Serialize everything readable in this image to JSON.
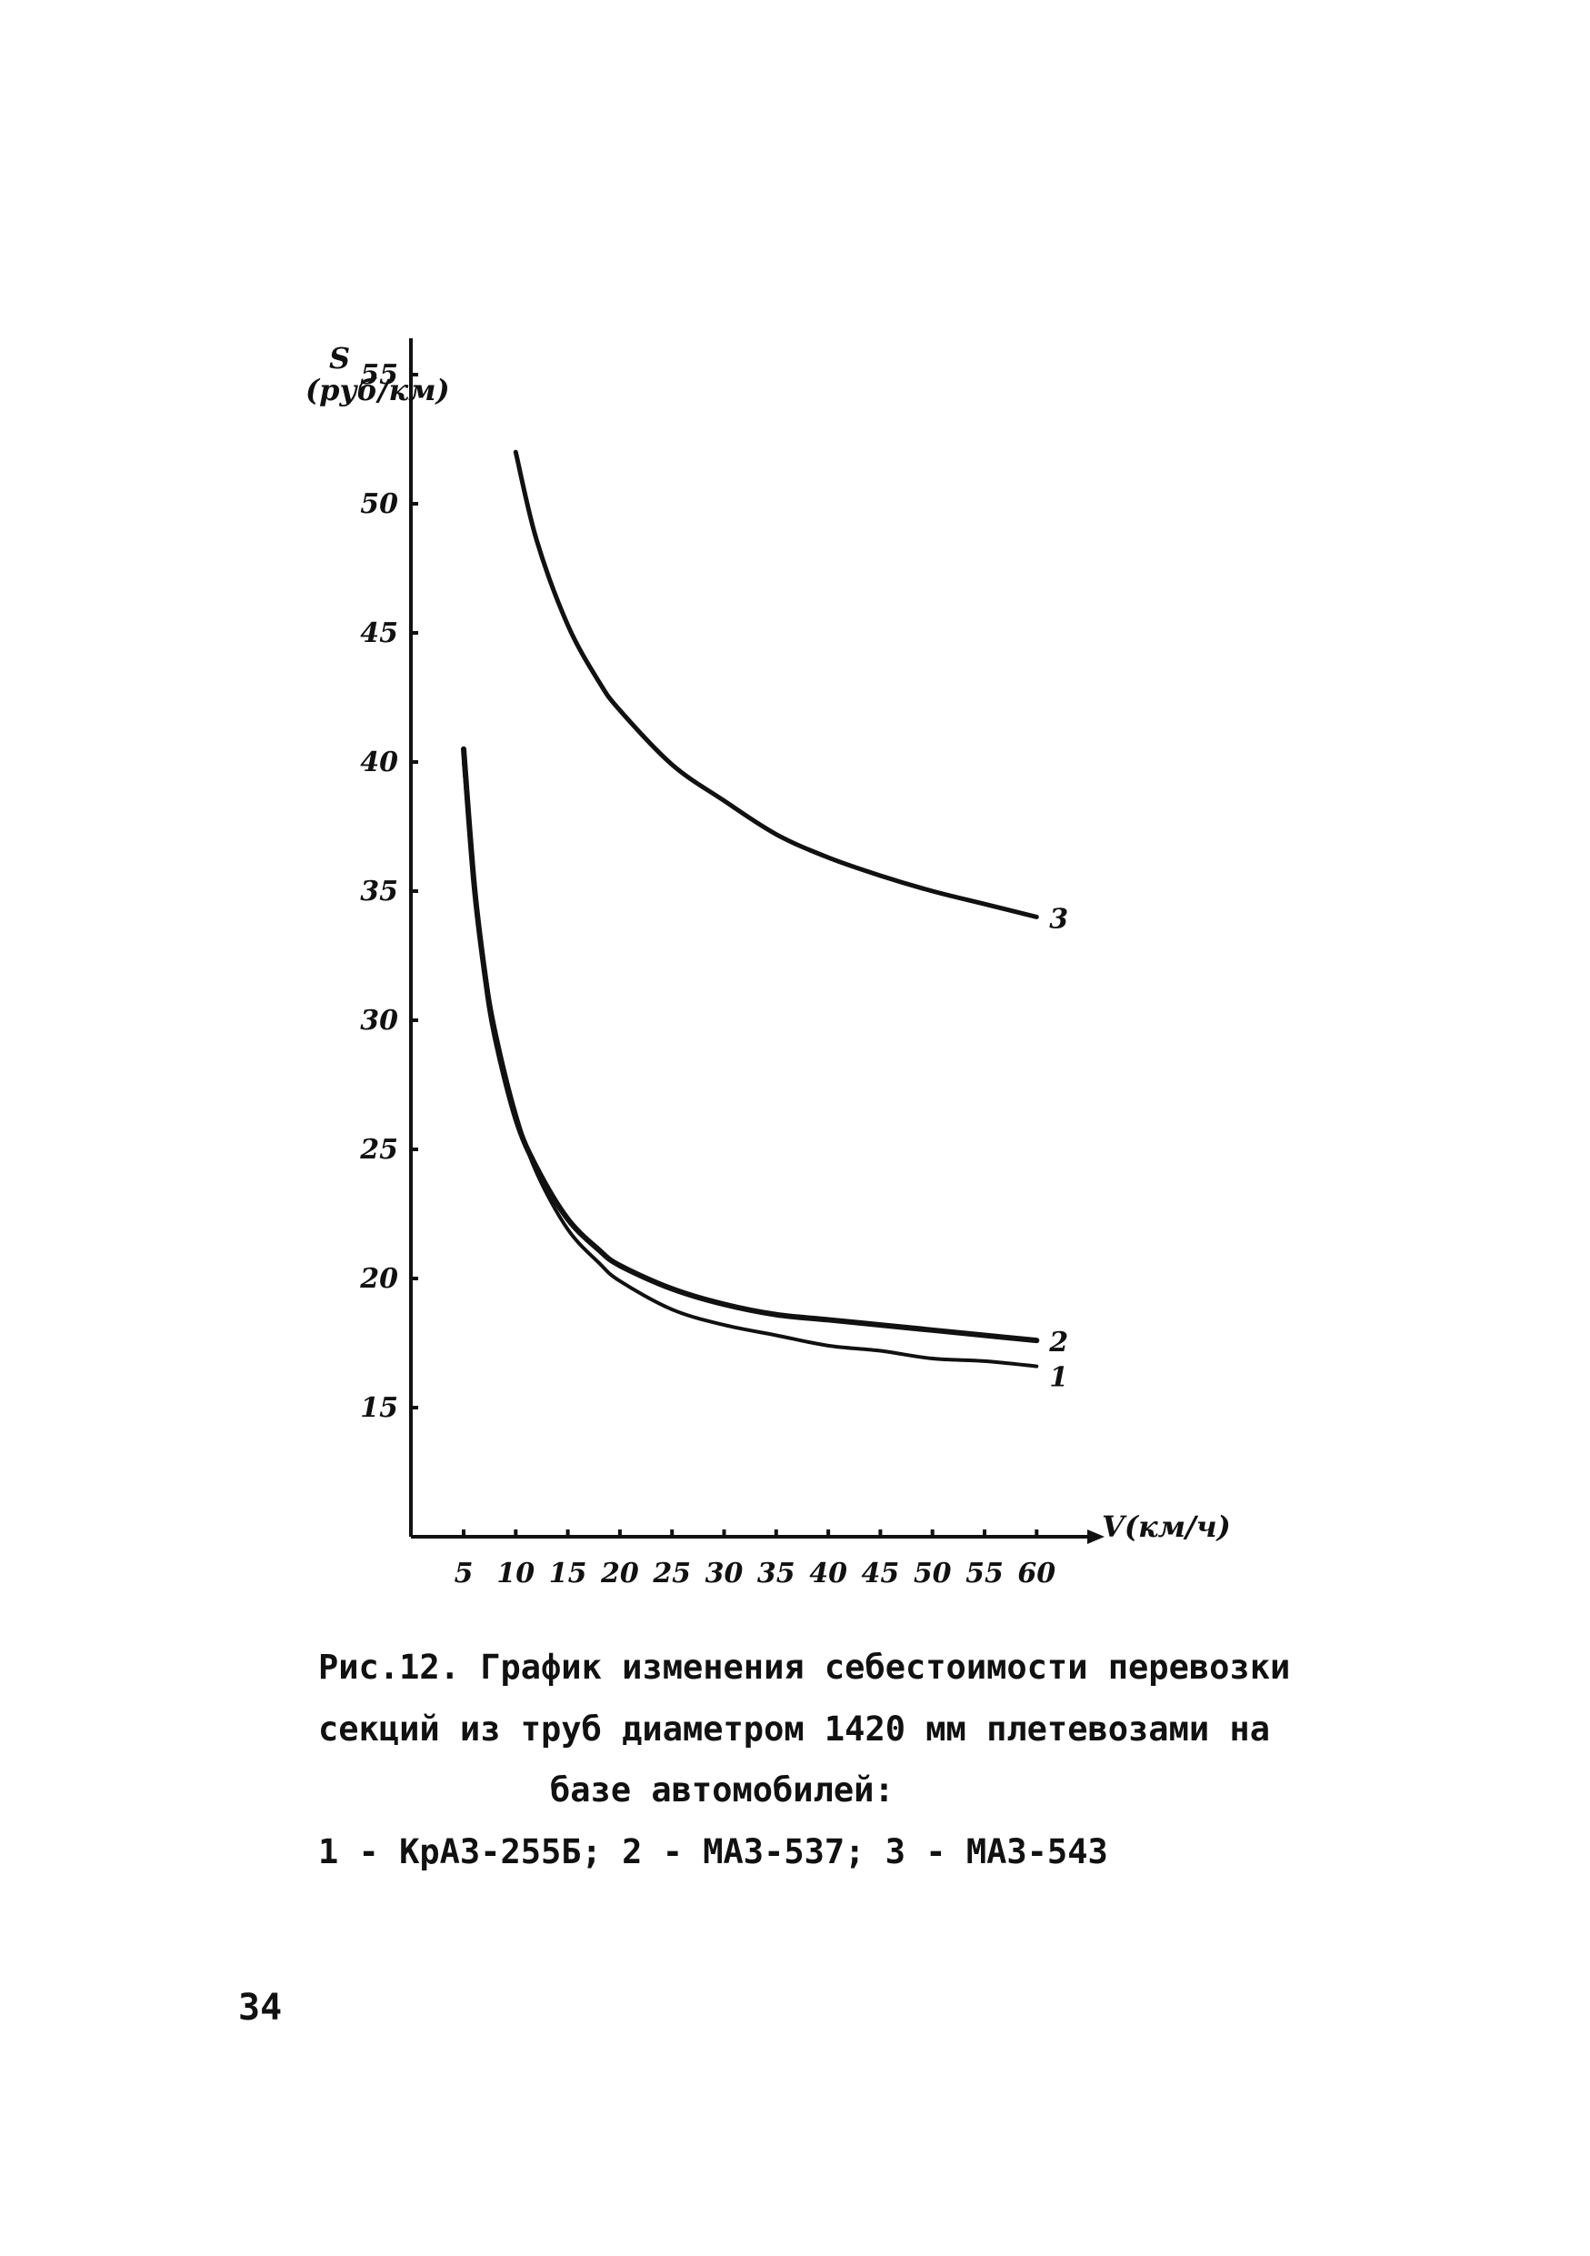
{
  "chart_data": {
    "type": "line",
    "ylabel": "S",
    "ylabel_unit": "(руб/км)",
    "xlabel": "V(км/ч)",
    "x_ticks": [
      "5",
      "10",
      "15",
      "20",
      "25",
      "30",
      "35",
      "40",
      "45",
      "50",
      "55",
      "60"
    ],
    "y_ticks": [
      "15",
      "20",
      "25",
      "30",
      "35",
      "40",
      "45",
      "50",
      "55"
    ],
    "xlim": [
      0,
      60
    ],
    "ylim": [
      10,
      55
    ],
    "grid": false,
    "series": [
      {
        "name": "1",
        "x": [
          5,
          6,
          7,
          8,
          10,
          12,
          15,
          18,
          20,
          25,
          30,
          35,
          40,
          45,
          50,
          55,
          60
        ],
        "values": [
          40.0,
          35.3,
          32.1,
          29.7,
          26.4,
          24.1,
          21.9,
          20.6,
          19.9,
          18.8,
          18.2,
          17.8,
          17.4,
          17.2,
          16.9,
          16.8,
          16.6
        ]
      },
      {
        "name": "2",
        "x": [
          5,
          6,
          7,
          8,
          10,
          12,
          15,
          18,
          20,
          25,
          30,
          35,
          40,
          45,
          50,
          55,
          60
        ],
        "values": [
          40.5,
          35.3,
          31.9,
          29.4,
          26.2,
          24.3,
          22.3,
          21.1,
          20.5,
          19.6,
          19.0,
          18.6,
          18.4,
          18.2,
          18.0,
          17.8,
          17.6
        ]
      },
      {
        "name": "3",
        "x": [
          10,
          12,
          15,
          18,
          20,
          25,
          30,
          35,
          40,
          45,
          50,
          55,
          60
        ],
        "values": [
          52.0,
          48.6,
          45.3,
          43.1,
          42.0,
          39.9,
          38.5,
          37.2,
          36.3,
          35.6,
          35.0,
          34.5,
          34.0
        ]
      }
    ]
  },
  "caption": {
    "line1": "Рис.12. График изменения себестоимости перевозки",
    "line2": "секций из труб диаметром 1420 мм плетевозами на",
    "line3": "базе автомобилей:",
    "line4": "1 - КрАЗ-255Б;   2 - МАЗ-537;   3 - МАЗ-543"
  },
  "page_number": "34"
}
